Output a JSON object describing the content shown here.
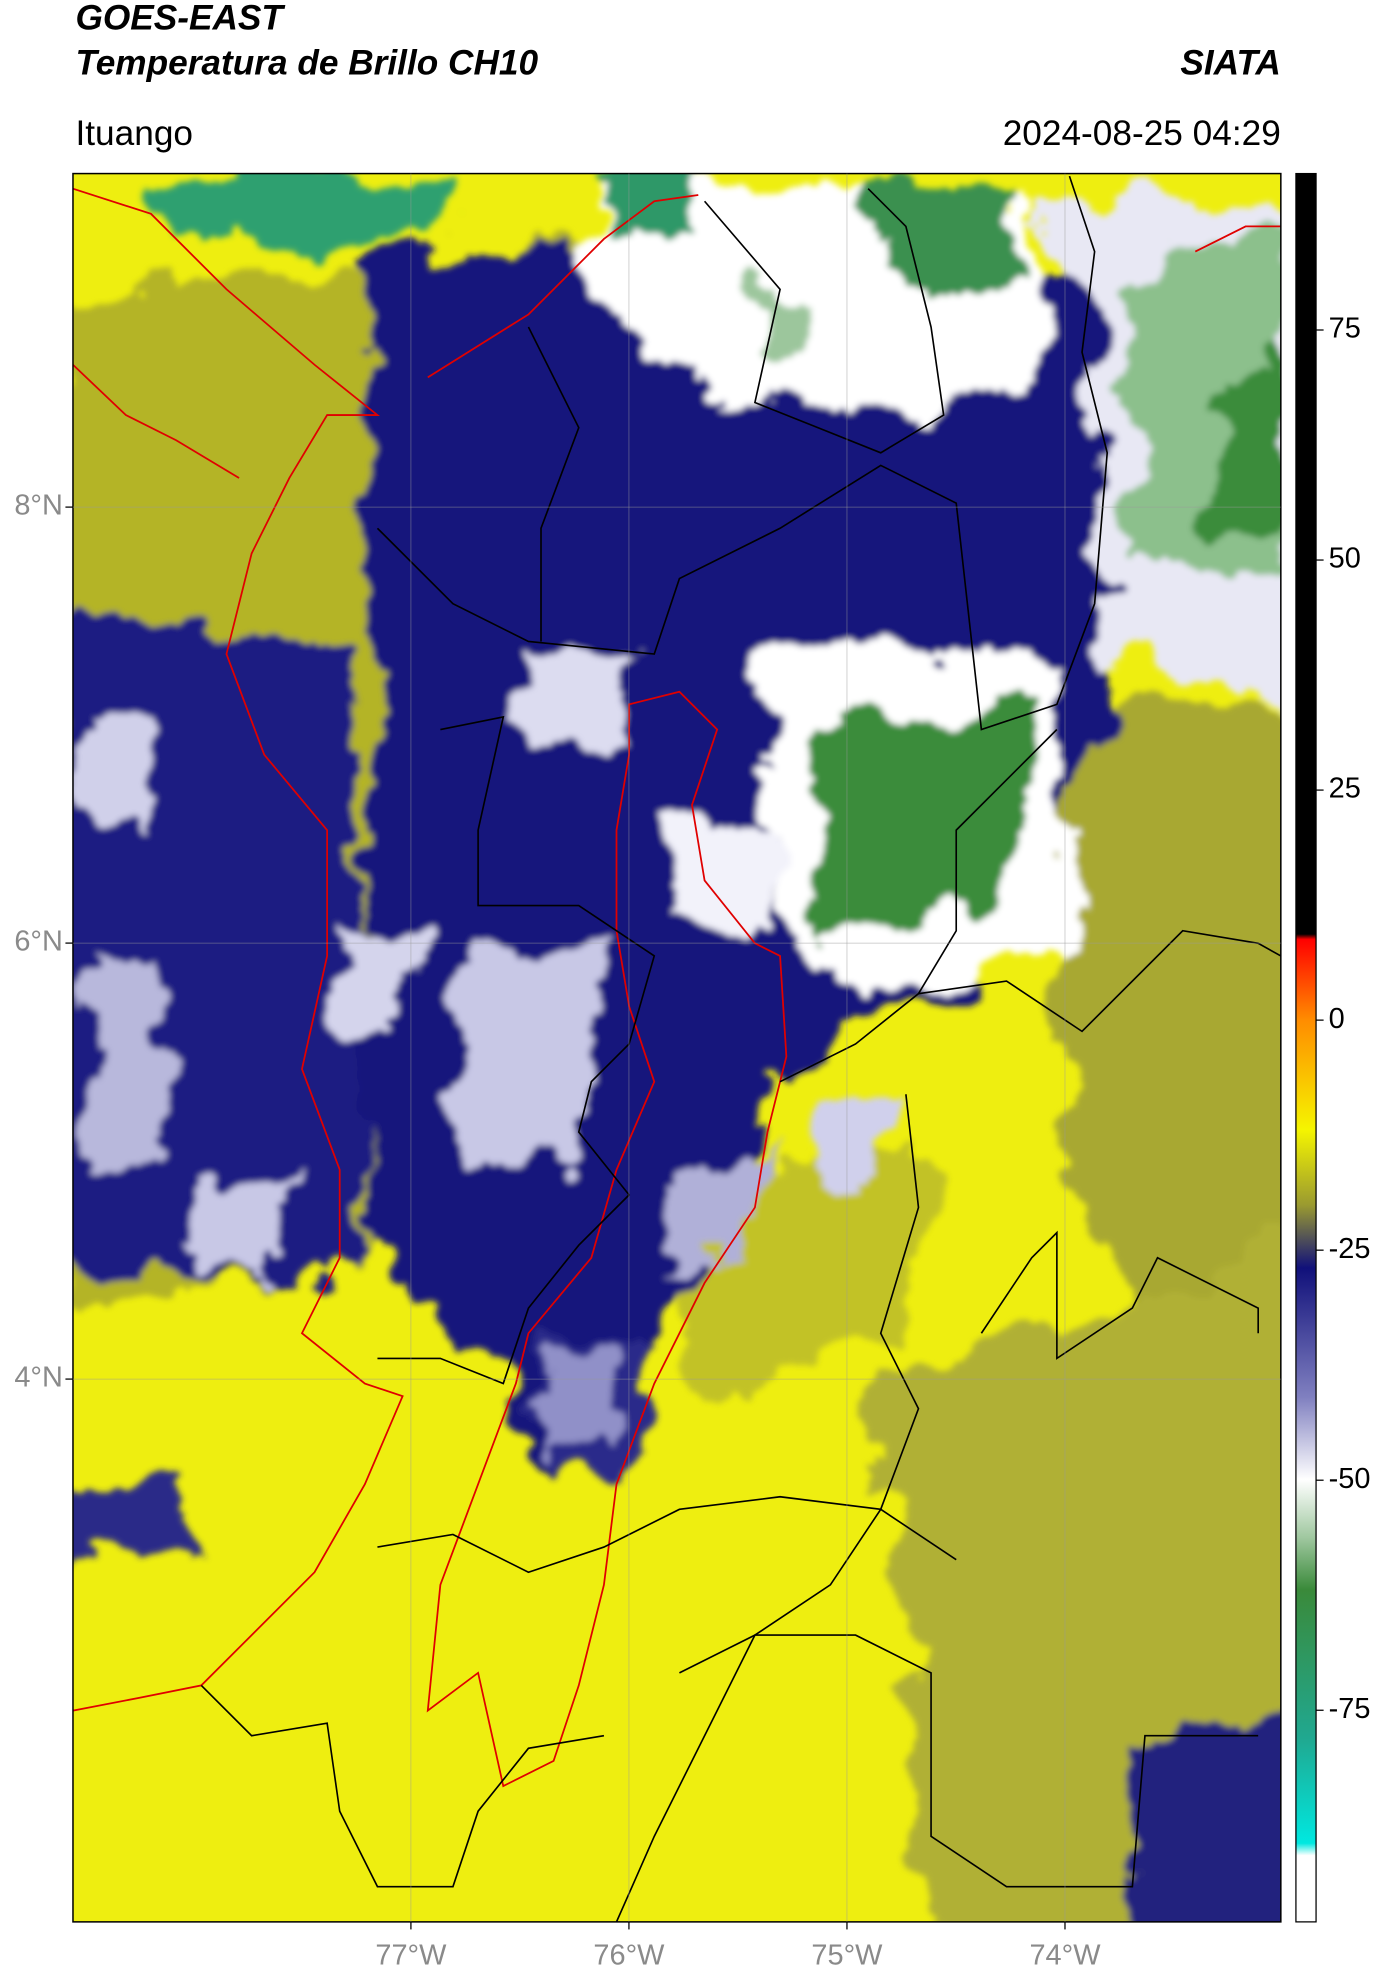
{
  "header": {
    "title": "GOES-EAST",
    "subtitle": "Temperatura de Brillo CH10",
    "brand": "SIATA",
    "location": "Ituango",
    "datetime": "2024-08-25 04:29"
  },
  "map": {
    "lonlim": [
      -78.55,
      -73.01
    ],
    "latlim": [
      1.51,
      9.53
    ],
    "xticks": [
      {
        "value": -77,
        "label": "77°W"
      },
      {
        "value": -76,
        "label": "76°W"
      },
      {
        "value": -75,
        "label": "75°W"
      },
      {
        "value": -74,
        "label": "74°W"
      }
    ],
    "yticks": [
      {
        "value": 8,
        "label": "8°N"
      },
      {
        "value": 6,
        "label": "6°N"
      },
      {
        "value": 4,
        "label": "4°N"
      }
    ],
    "grid": true
  },
  "colorbar": {
    "lim": [
      -98,
      92
    ],
    "ticks": [
      75,
      50,
      25,
      0,
      -25,
      -50,
      -75
    ]
  }
}
